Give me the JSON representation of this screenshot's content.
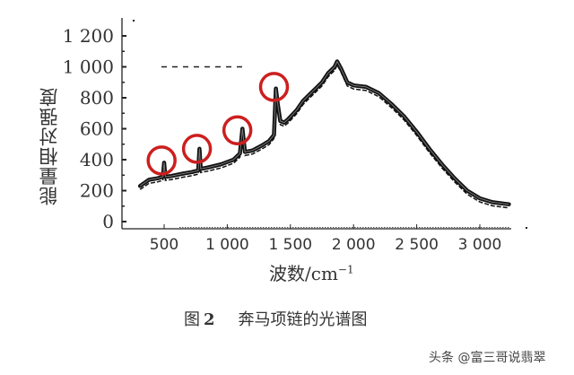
{
  "chart_data": {
    "type": "line",
    "title": "奔马项链的光谱图",
    "figure_label": "图 2",
    "xlabel": "波数/cm",
    "xlabel_superscript": "−1",
    "ylabel": "能量相对强度",
    "xlim": [
      200,
      3350
    ],
    "ylim": [
      0,
      1300
    ],
    "xticks": [
      500,
      1000,
      1500,
      2000,
      2500,
      3000
    ],
    "xtick_labels": [
      "500",
      "1 000",
      "1 500",
      "2 000",
      "2 500",
      "3 000"
    ],
    "yticks": [
      0,
      200,
      400,
      600,
      800,
      1000,
      1200
    ],
    "ytick_labels": [
      "0",
      "200",
      "400",
      "600",
      "800",
      "1 000",
      "1 200"
    ],
    "grid": false,
    "legend": null,
    "series": [
      {
        "name": "spectrum",
        "color": "#111111",
        "x": [
          310,
          380,
          450,
          490,
          500,
          510,
          560,
          650,
          720,
          770,
          780,
          790,
          850,
          950,
          1050,
          1100,
          1120,
          1140,
          1200,
          1270,
          1330,
          1370,
          1385,
          1400,
          1420,
          1450,
          1480,
          1550,
          1600,
          1650,
          1700,
          1750,
          1800,
          1850,
          1870,
          1900,
          1950,
          2000,
          2100,
          2200,
          2300,
          2400,
          2500,
          2600,
          2700,
          2800,
          2900,
          3000,
          3100,
          3200,
          3230
        ],
        "y": [
          230,
          270,
          280,
          290,
          380,
          290,
          295,
          310,
          320,
          330,
          470,
          340,
          350,
          370,
          400,
          440,
          600,
          450,
          460,
          490,
          520,
          560,
          860,
          760,
          650,
          640,
          660,
          720,
          780,
          820,
          860,
          900,
          960,
          1000,
          1035,
          990,
          900,
          880,
          870,
          830,
          760,
          680,
          580,
          470,
          370,
          280,
          200,
          150,
          125,
          115,
          112
        ]
      }
    ],
    "annotations": [
      {
        "type": "circle",
        "color": "#cc1f1f",
        "x": 480,
        "y": 395,
        "note": "peak ~500"
      },
      {
        "type": "circle",
        "color": "#cc1f1f",
        "x": 760,
        "y": 470,
        "note": "peak ~780"
      },
      {
        "type": "circle",
        "color": "#cc1f1f",
        "x": 1080,
        "y": 590,
        "note": "peak ~1120"
      },
      {
        "type": "circle",
        "color": "#cc1f1f",
        "x": 1370,
        "y": 870,
        "note": "peak ~1385"
      }
    ],
    "dashed_line": {
      "x_start": 200,
      "x_end": 900,
      "y": 1000
    }
  },
  "caption": {
    "figure_label": "图",
    "figure_number": "2",
    "text": "奔马项链的光谱图"
  },
  "watermark": "头条 @富三哥说翡翠"
}
